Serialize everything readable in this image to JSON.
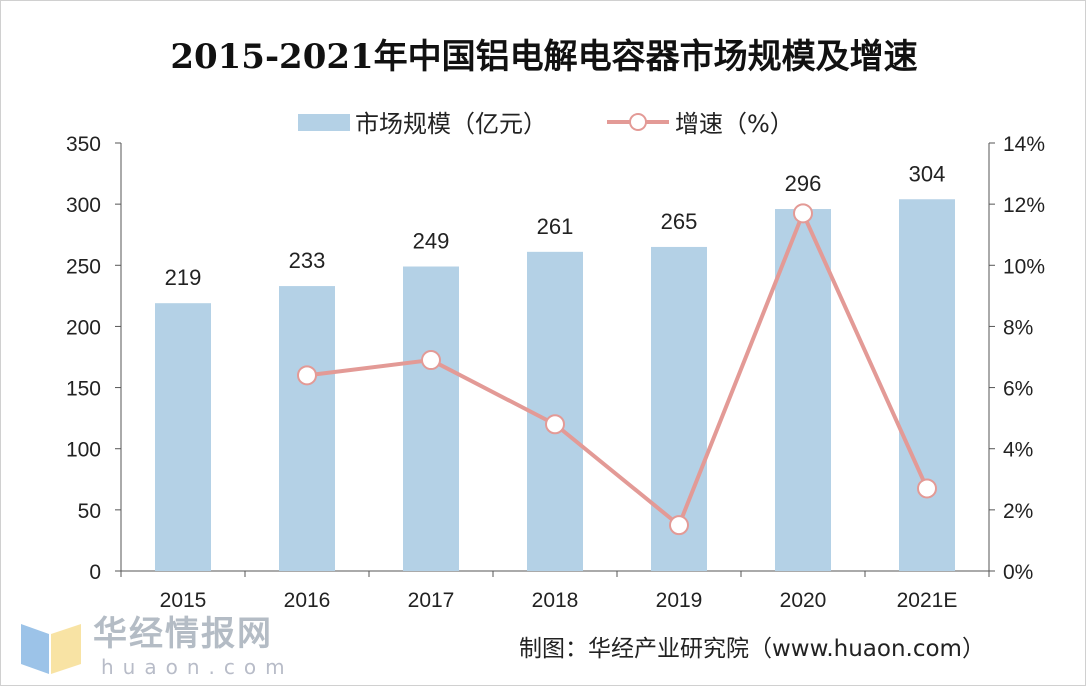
{
  "chart_data": {
    "type": "bar",
    "title": "2015-2021年中国铝电解电容器市场规模及增速",
    "categories": [
      "2015",
      "2016",
      "2017",
      "2018",
      "2019",
      "2020",
      "2021E"
    ],
    "series": [
      {
        "name": "市场规模（亿元）",
        "type": "bar",
        "axis": "left",
        "values": [
          219,
          233,
          249,
          261,
          265,
          296,
          304
        ],
        "color": "#b4d1e6"
      },
      {
        "name": "增速（%）",
        "type": "line",
        "axis": "right",
        "values": [
          null,
          6.4,
          6.9,
          4.8,
          1.5,
          11.7,
          2.7
        ],
        "color": "#e39a96"
      }
    ],
    "data_labels": [
      "219",
      "233",
      "249",
      "261",
      "265",
      "296",
      "304"
    ],
    "y_left": {
      "lim": [
        0,
        350
      ],
      "ticks": [
        "0",
        "50",
        "100",
        "150",
        "200",
        "250",
        "300",
        "350"
      ]
    },
    "y_right": {
      "lim": [
        0,
        14
      ],
      "ticks": [
        "0%",
        "2%",
        "4%",
        "6%",
        "8%",
        "10%",
        "12%",
        "14%"
      ]
    },
    "legend": "top-center",
    "grid": false
  },
  "source": "制图：华经产业研究院（www.huaon.com）",
  "watermark": {
    "text": "华经情报网",
    "url": "huaon.com"
  }
}
